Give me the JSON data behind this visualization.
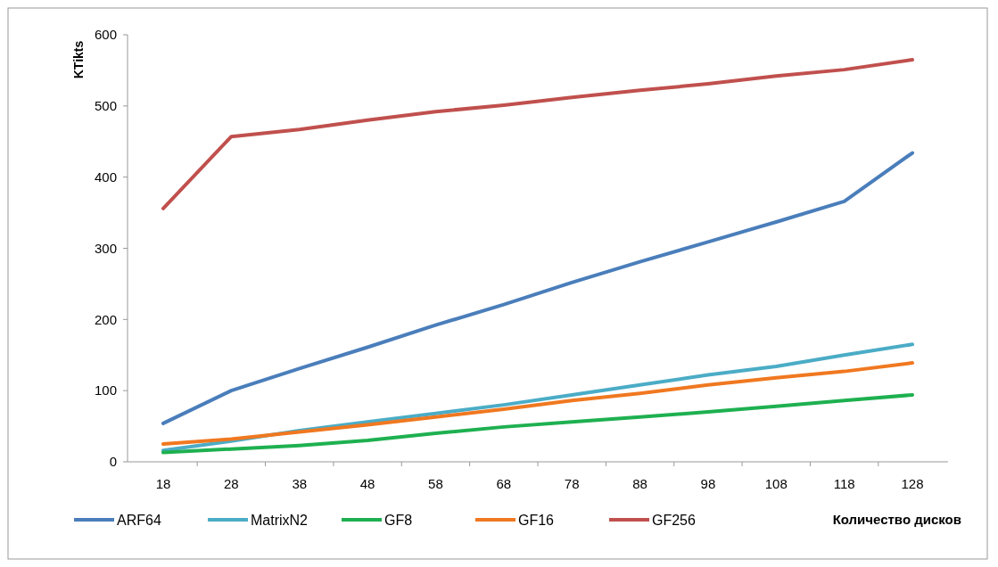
{
  "chart_data": {
    "type": "line",
    "xlabel": "Количество дисков",
    "ylabel": "KTikts",
    "categories": [
      "18",
      "28",
      "38",
      "48",
      "58",
      "68",
      "78",
      "88",
      "98",
      "108",
      "118",
      "128"
    ],
    "series": [
      {
        "name": "ARF64",
        "color": "#4a7ebb",
        "values": [
          54,
          100,
          131,
          161,
          192,
          221,
          252,
          281,
          309,
          337,
          366,
          434
        ]
      },
      {
        "name": "MatrixN2",
        "color": "#4bacc6",
        "values": [
          16,
          29,
          44,
          56,
          68,
          80,
          94,
          108,
          122,
          134,
          150,
          165
        ]
      },
      {
        "name": "GF8",
        "color": "#1eb050",
        "values": [
          13,
          18,
          23,
          30,
          40,
          49,
          56,
          63,
          70,
          78,
          86,
          94
        ]
      },
      {
        "name": "GF16",
        "color": "#f07820",
        "values": [
          25,
          32,
          42,
          52,
          63,
          74,
          86,
          96,
          108,
          118,
          127,
          139
        ]
      },
      {
        "name": "GF256",
        "color": "#c0504d",
        "values": [
          356,
          457,
          467,
          480,
          492,
          501,
          512,
          522,
          531,
          542,
          551,
          565
        ]
      }
    ],
    "ylim": [
      0,
      600
    ],
    "yticks": [
      0,
      100,
      200,
      300,
      400,
      500,
      600
    ],
    "legend": "bottom",
    "grid": false
  }
}
